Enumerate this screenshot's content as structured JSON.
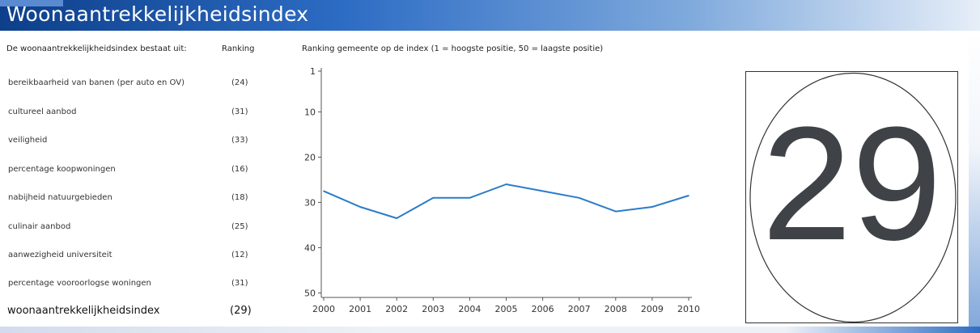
{
  "header": {
    "title": "Woonaantrekkelijkheidsindex"
  },
  "left_panel": {
    "heading": "De woonaantrekkelijkheidsindex bestaat uit:",
    "rank_heading": "Ranking",
    "rows": [
      {
        "label": "bereikbaarheid van banen (per auto en OV)",
        "rank": "(24)"
      },
      {
        "label": "cultureel aanbod",
        "rank": "(31)"
      },
      {
        "label": "veiligheid",
        "rank": "(33)"
      },
      {
        "label": "percentage koopwoningen",
        "rank": "(16)"
      },
      {
        "label": "nabijheid natuurgebieden",
        "rank": "(18)"
      },
      {
        "label": "culinair aanbod",
        "rank": "(25)"
      },
      {
        "label": "aanwezigheid universiteit",
        "rank": "(12)"
      },
      {
        "label": "percentage vooroorlogse woningen",
        "rank": "(31)"
      }
    ],
    "total": {
      "label": "woonaantrekkelijkheidsindex",
      "rank": "(29)"
    }
  },
  "chart_data": {
    "type": "line",
    "title": "Ranking gemeente op de index (1 = hoogste positie, 50 = laagste positie)",
    "xlabel": "",
    "ylabel": "",
    "x": [
      2000,
      2001,
      2002,
      2003,
      2004,
      2005,
      2006,
      2007,
      2008,
      2009,
      2010
    ],
    "y_ticks": [
      1,
      10,
      20,
      30,
      40,
      50
    ],
    "ylim": [
      1,
      51
    ],
    "y_inverted": true,
    "grid": false,
    "series": [
      {
        "values": [
          27.5,
          31,
          33.5,
          29,
          29,
          26,
          27.5,
          29,
          32,
          31,
          28.5
        ],
        "color": "#2b7bc8"
      }
    ]
  },
  "badge": {
    "value": "29"
  }
}
